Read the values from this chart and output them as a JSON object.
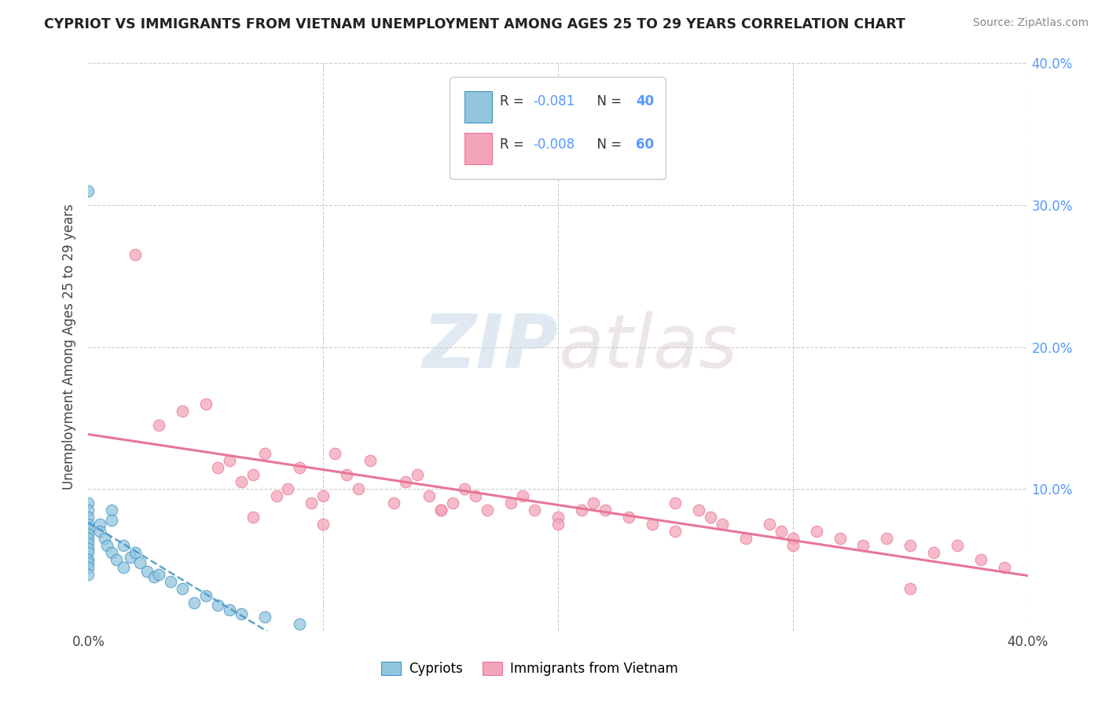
{
  "title": "CYPRIOT VS IMMIGRANTS FROM VIETNAM UNEMPLOYMENT AMONG AGES 25 TO 29 YEARS CORRELATION CHART",
  "source": "Source: ZipAtlas.com",
  "ylabel": "Unemployment Among Ages 25 to 29 years",
  "xlim": [
    0.0,
    0.4
  ],
  "ylim": [
    0.0,
    0.4
  ],
  "legend_r1": "R = ",
  "legend_rv1": "-0.081",
  "legend_n1": "N = ",
  "legend_nv1": "40",
  "legend_r2": "R = ",
  "legend_rv2": "-0.008",
  "legend_n2": "N = ",
  "legend_nv2": "60",
  "color_blue": "#92c5de",
  "color_pink": "#f4a4b8",
  "color_blue_edge": "#4393c3",
  "color_pink_edge": "#e8759a",
  "color_blue_line": "#4393c3",
  "color_pink_line": "#e8759a",
  "legend_label1": "Cypriots",
  "legend_label2": "Immigrants from Vietnam",
  "background_color": "#ffffff",
  "grid_color": "#cccccc",
  "tick_color_right": "#5599ff",
  "cypriot_x": [
    0.0,
    0.0,
    0.0,
    0.0,
    0.0,
    0.0,
    0.0,
    0.0,
    0.0,
    0.0,
    0.0,
    0.0,
    0.0,
    0.0,
    0.0,
    0.005,
    0.005,
    0.007,
    0.008,
    0.01,
    0.01,
    0.01,
    0.012,
    0.015,
    0.015,
    0.018,
    0.02,
    0.022,
    0.025,
    0.028,
    0.03,
    0.035,
    0.04,
    0.045,
    0.05,
    0.055,
    0.06,
    0.065,
    0.075,
    0.09
  ],
  "cypriot_y": [
    0.31,
    0.09,
    0.085,
    0.08,
    0.075,
    0.072,
    0.068,
    0.065,
    0.062,
    0.058,
    0.055,
    0.05,
    0.048,
    0.045,
    0.04,
    0.075,
    0.07,
    0.065,
    0.06,
    0.085,
    0.078,
    0.055,
    0.05,
    0.06,
    0.045,
    0.052,
    0.055,
    0.048,
    0.042,
    0.038,
    0.04,
    0.035,
    0.03,
    0.02,
    0.025,
    0.018,
    0.015,
    0.012,
    0.01,
    0.005
  ],
  "vietnam_x": [
    0.02,
    0.03,
    0.04,
    0.05,
    0.055,
    0.06,
    0.065,
    0.07,
    0.075,
    0.08,
    0.085,
    0.09,
    0.095,
    0.1,
    0.105,
    0.11,
    0.115,
    0.12,
    0.13,
    0.135,
    0.14,
    0.145,
    0.15,
    0.155,
    0.16,
    0.165,
    0.17,
    0.18,
    0.185,
    0.19,
    0.2,
    0.21,
    0.215,
    0.22,
    0.23,
    0.24,
    0.25,
    0.26,
    0.265,
    0.27,
    0.28,
    0.29,
    0.295,
    0.3,
    0.31,
    0.32,
    0.33,
    0.34,
    0.35,
    0.36,
    0.37,
    0.38,
    0.39,
    0.07,
    0.1,
    0.15,
    0.2,
    0.25,
    0.3,
    0.35
  ],
  "vietnam_y": [
    0.265,
    0.145,
    0.155,
    0.16,
    0.115,
    0.12,
    0.105,
    0.11,
    0.125,
    0.095,
    0.1,
    0.115,
    0.09,
    0.095,
    0.125,
    0.11,
    0.1,
    0.12,
    0.09,
    0.105,
    0.11,
    0.095,
    0.085,
    0.09,
    0.1,
    0.095,
    0.085,
    0.09,
    0.095,
    0.085,
    0.08,
    0.085,
    0.09,
    0.085,
    0.08,
    0.075,
    0.09,
    0.085,
    0.08,
    0.075,
    0.065,
    0.075,
    0.07,
    0.065,
    0.07,
    0.065,
    0.06,
    0.065,
    0.06,
    0.055,
    0.06,
    0.05,
    0.045,
    0.08,
    0.075,
    0.085,
    0.075,
    0.07,
    0.06,
    0.03
  ]
}
